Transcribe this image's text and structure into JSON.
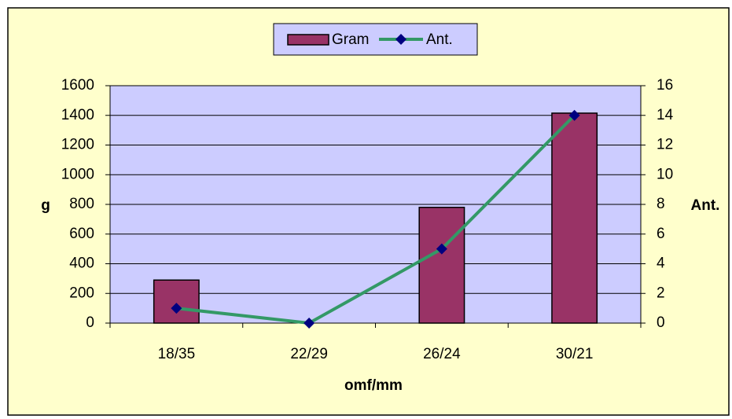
{
  "chart_data": {
    "type": "bar",
    "x_label": "omf/mm",
    "y_label": "g",
    "y2_label": "Ant.",
    "categories": [
      "18/35",
      "22/29",
      "26/24",
      "30/21"
    ],
    "series": [
      {
        "name": "Gram",
        "type": "bar",
        "color": "#993366",
        "values": [
          290,
          0,
          780,
          1415
        ]
      },
      {
        "name": "Ant.",
        "type": "line",
        "color": "#339966",
        "marker_color": "#000080",
        "axis": "y2",
        "values": [
          1,
          0,
          5,
          14
        ]
      }
    ],
    "ylim": [
      0,
      1600
    ],
    "yticks": [
      0,
      200,
      400,
      600,
      800,
      1000,
      1200,
      1400,
      1600
    ],
    "y2lim": [
      0,
      16
    ],
    "y2ticks": [
      0,
      2,
      4,
      6,
      8,
      10,
      12,
      14,
      16
    ],
    "grid": true,
    "legend": "top"
  }
}
